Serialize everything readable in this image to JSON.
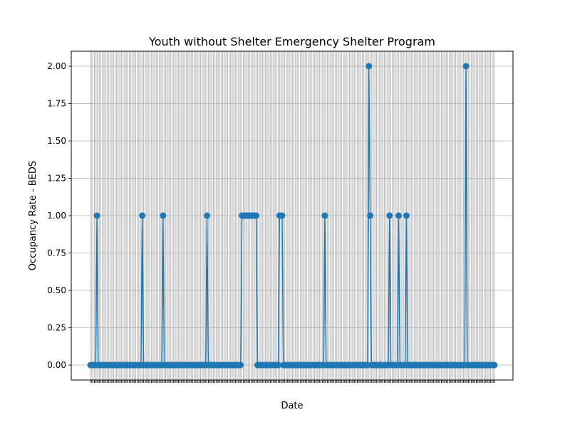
{
  "chart_data": {
    "type": "line",
    "title": "Youth without Shelter Emergency Shelter Program",
    "xlabel": "Date",
    "ylabel": "Occupancy Rate - BEDS",
    "ylim": [
      -0.1,
      2.1
    ],
    "y_ticks": [
      "0.00",
      "0.25",
      "0.50",
      "0.75",
      "1.00",
      "1.25",
      "1.50",
      "1.75",
      "2.00"
    ],
    "grid": true,
    "marker": "circle",
    "color": "#1f77b4",
    "series": [
      {
        "values": [
          0,
          0,
          0,
          0,
          0,
          1,
          0,
          0,
          0,
          0,
          0,
          0,
          0,
          0,
          0,
          0,
          0,
          0,
          0,
          0,
          0,
          0,
          0,
          0,
          0,
          0,
          0,
          0,
          0,
          0,
          0,
          0,
          0,
          0,
          0,
          0,
          0,
          0,
          0,
          0,
          1,
          0,
          0,
          0,
          0,
          0,
          0,
          0,
          0,
          0,
          0,
          0,
          0,
          0,
          0,
          0,
          1,
          0,
          0,
          0,
          0,
          0,
          0,
          0,
          0,
          0,
          0,
          0,
          0,
          0,
          0,
          0,
          0,
          0,
          0,
          0,
          0,
          0,
          0,
          0,
          0,
          0,
          0,
          0,
          0,
          0,
          0,
          0,
          0,
          0,
          1,
          0,
          0,
          0,
          0,
          0,
          0,
          0,
          0,
          0,
          0,
          0,
          0,
          0,
          0,
          0,
          0,
          0,
          0,
          0,
          0,
          0,
          0,
          0,
          0,
          0,
          0,
          1,
          1,
          1,
          1,
          1,
          1,
          1,
          1,
          1,
          1,
          1,
          1,
          0,
          0,
          0,
          0,
          0,
          0,
          0,
          0,
          0,
          0,
          0,
          0,
          0,
          0,
          0,
          0,
          0,
          1,
          1,
          1,
          0,
          0,
          0,
          0,
          0,
          0,
          0,
          0,
          0,
          0,
          0,
          0,
          0,
          0,
          0,
          0,
          0,
          0,
          0,
          0,
          0,
          0,
          0,
          0,
          0,
          0,
          0,
          0,
          0,
          0,
          0,
          0,
          1,
          0,
          0,
          0,
          0,
          0,
          0,
          0,
          0,
          0,
          0,
          0,
          0,
          0,
          0,
          0,
          0,
          0,
          0,
          0,
          0,
          0,
          0,
          0,
          0,
          0,
          0,
          0,
          0,
          0,
          0,
          0,
          0,
          0,
          2,
          1,
          0,
          0,
          0,
          0,
          0,
          0,
          0,
          0,
          0,
          0,
          0,
          0,
          0,
          0,
          1,
          0,
          0,
          0,
          0,
          0,
          0,
          1,
          0,
          0,
          0,
          0,
          0,
          1,
          0,
          0,
          0,
          0,
          0,
          0,
          0,
          0,
          0,
          0,
          0,
          0,
          0,
          0,
          0,
          0,
          0,
          0,
          0,
          0,
          0,
          0,
          0,
          0,
          0,
          0,
          0,
          0,
          0,
          0,
          0,
          0,
          0,
          0,
          0,
          0,
          0,
          0,
          0,
          0,
          0,
          0,
          0,
          0,
          0,
          2,
          0,
          0,
          0,
          0,
          0,
          0,
          0,
          0,
          0,
          0,
          0,
          0,
          0,
          0,
          0,
          0,
          0,
          0,
          0,
          0,
          0,
          0
        ]
      }
    ]
  }
}
